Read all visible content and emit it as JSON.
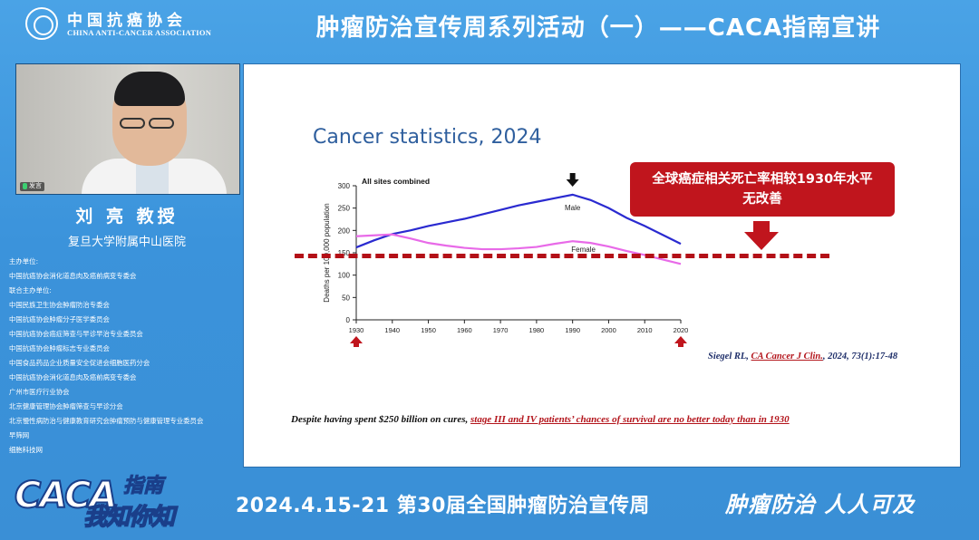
{
  "header": {
    "title": "肿瘤防治宣传周系列活动（一）——CACA指南宣讲",
    "logo_cn": "中国抗癌协会",
    "logo_en": "CHINA ANTI-CANCER ASSOCIATION"
  },
  "video": {
    "mic_label": "发言"
  },
  "speaker": {
    "name": "刘 亮 教授",
    "affiliation": "复旦大学附属中山医院"
  },
  "organizers": [
    "主办单位:",
    "中国抗癌协会消化道息肉及癌前病变专委会",
    "联合主办单位:",
    "中国民族卫生协会肿瘤防治专委会",
    "中国抗癌协会肿瘤分子医学委员会",
    "中国抗癌协会癌症筛查与早诊早治专业委员会",
    "中国抗癌协会肿瘤标志专业委员会",
    "中国食品药品企业质量安全促进会细胞医药分会",
    "中国抗癌协会消化道息肉及癌前病变专委会",
    "广州市医疗行业协会",
    "北京健康管理协会肿瘤筛查与早诊分会",
    "北京慢性病防治与健康教育研究会肿瘤预防与健康管理专业委员会",
    "早筛网",
    "细胞科技网"
  ],
  "slide": {
    "title": "Cancer statistics, 2024",
    "red_box_line1": "全球癌症相关死亡率相较1930年水平",
    "red_box_line2": "无改善",
    "citation_prefix": "Siegel RL, ",
    "citation_journal": "CA Cancer J Clin.",
    "citation_suffix": ", 2024, 73(1):17-48",
    "note_prefix": "Despite having spent $250 billion on cures, ",
    "note_highlight": "stage III and IV patients’ chances of survival are no better today than in 1930"
  },
  "chart_data": {
    "type": "line",
    "title": "All sites combined",
    "ylabel": "Deaths per 100,000 population",
    "xlabel": "",
    "xlim": [
      1930,
      2020
    ],
    "ylim": [
      0,
      300
    ],
    "x_ticks": [
      1930,
      1940,
      1950,
      1960,
      1970,
      1980,
      1990,
      2000,
      2010,
      2020
    ],
    "y_ticks": [
      0,
      50,
      100,
      150,
      200,
      250,
      300
    ],
    "series": [
      {
        "name": "Male",
        "color": "#2a2ad0",
        "x": [
          1930,
          1935,
          1940,
          1945,
          1950,
          1955,
          1960,
          1965,
          1970,
          1975,
          1980,
          1985,
          1990,
          1995,
          2000,
          2005,
          2010,
          2015,
          2020
        ],
        "y": [
          162,
          178,
          192,
          200,
          210,
          218,
          226,
          236,
          246,
          256,
          264,
          272,
          280,
          268,
          250,
          228,
          210,
          190,
          170
        ]
      },
      {
        "name": "Female",
        "color": "#e86ae8",
        "x": [
          1930,
          1935,
          1940,
          1945,
          1950,
          1955,
          1960,
          1965,
          1970,
          1975,
          1980,
          1985,
          1990,
          1995,
          2000,
          2005,
          2010,
          2015,
          2020
        ],
        "y": [
          187,
          189,
          191,
          182,
          172,
          166,
          161,
          158,
          158,
          160,
          163,
          170,
          176,
          172,
          164,
          154,
          145,
          135,
          125
        ]
      }
    ],
    "markers": {
      "down_arrow_x": 1990,
      "start_marker_x": 1930,
      "end_marker_x": 2020
    }
  },
  "footer": {
    "caca": "CACA",
    "zhinan": "指南",
    "slogan": "我知你知",
    "date_event": "2024.4.15-21 第30届全国肿瘤防治宣传周",
    "motto": "肿瘤防治 人人可及"
  }
}
